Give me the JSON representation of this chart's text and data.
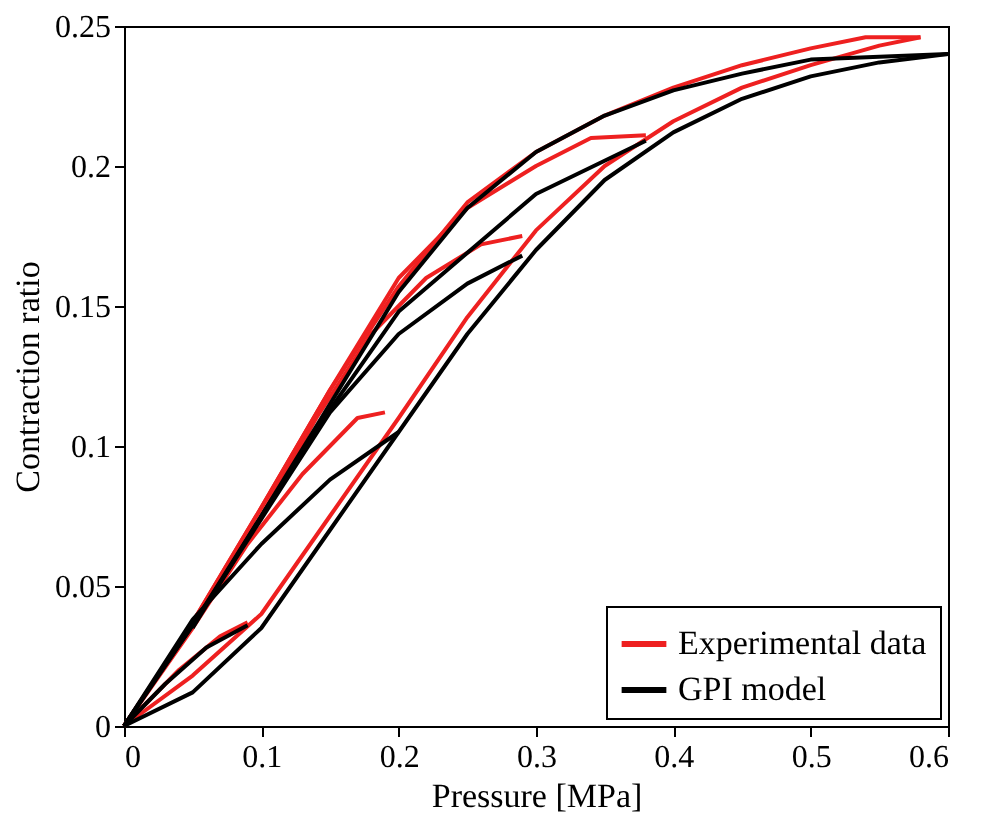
{
  "chart_data": {
    "type": "line",
    "xlabel": "Pressure [MPa]",
    "ylabel": "Contraction ratio",
    "xlim": [
      0,
      0.6
    ],
    "ylim": [
      0,
      0.25
    ],
    "xticks": [
      0,
      0.1,
      0.2,
      0.3,
      0.4,
      0.5,
      0.6
    ],
    "yticks": [
      0,
      0.05,
      0.1,
      0.15,
      0.2,
      0.25
    ],
    "legend": "bottom right",
    "grid": false,
    "line_style": "solid",
    "marker": "none",
    "series": [
      {
        "name": "Experimental data",
        "color": "#ee2020",
        "x": [
          0,
          0.05,
          0.1,
          0.15,
          0.2,
          0.25,
          0.3,
          0.35,
          0.4,
          0.45,
          0.5,
          0.55,
          0.58
        ],
        "values": [
          0,
          0.018,
          0.04,
          0.075,
          0.11,
          0.146,
          0.177,
          0.2,
          0.216,
          0.228,
          0.236,
          0.243,
          0.246
        ]
      },
      {
        "color": "#ee2020",
        "x": [
          0,
          0.04,
          0.07,
          0.09
        ],
        "values": [
          0,
          0.02,
          0.032,
          0.037
        ]
      },
      {
        "color": "#ee2020",
        "x": [
          0,
          0.05,
          0.09,
          0.13,
          0.17,
          0.19
        ],
        "values": [
          0,
          0.035,
          0.065,
          0.09,
          0.11,
          0.112
        ]
      },
      {
        "color": "#ee2020",
        "x": [
          0,
          0.05,
          0.1,
          0.14,
          0.18,
          0.22,
          0.26,
          0.29
        ],
        "values": [
          0,
          0.036,
          0.075,
          0.11,
          0.14,
          0.16,
          0.172,
          0.175
        ]
      },
      {
        "color": "#ee2020",
        "x": [
          0,
          0.05,
          0.1,
          0.15,
          0.2,
          0.25,
          0.3,
          0.34,
          0.38
        ],
        "values": [
          0,
          0.037,
          0.078,
          0.12,
          0.16,
          0.185,
          0.2,
          0.21,
          0.211
        ]
      },
      {
        "color": "#ee2020",
        "x": [
          0.05,
          0.1,
          0.15,
          0.2,
          0.25,
          0.3,
          0.35,
          0.4,
          0.45,
          0.5,
          0.54,
          0.58
        ],
        "values": [
          0.037,
          0.078,
          0.12,
          0.157,
          0.187,
          0.205,
          0.218,
          0.228,
          0.236,
          0.242,
          0.246,
          0.246
        ]
      },
      {
        "name": "GPI model",
        "color": "#000000",
        "x": [
          0,
          0.05,
          0.1,
          0.15,
          0.2,
          0.25,
          0.3,
          0.35,
          0.4,
          0.45,
          0.5,
          0.55,
          0.6
        ],
        "values": [
          0,
          0.012,
          0.035,
          0.07,
          0.105,
          0.14,
          0.17,
          0.195,
          0.212,
          0.224,
          0.232,
          0.237,
          0.24
        ]
      },
      {
        "color": "#000000",
        "x": [
          0,
          0.03,
          0.06,
          0.09
        ],
        "values": [
          0,
          0.015,
          0.028,
          0.036
        ]
      },
      {
        "color": "#000000",
        "x": [
          0,
          0.05,
          0.1,
          0.15,
          0.2
        ],
        "values": [
          0,
          0.038,
          0.065,
          0.088,
          0.105
        ]
      },
      {
        "color": "#000000",
        "x": [
          0,
          0.05,
          0.1,
          0.15,
          0.2,
          0.25,
          0.29
        ],
        "values": [
          0,
          0.036,
          0.074,
          0.112,
          0.14,
          0.158,
          0.168
        ]
      },
      {
        "color": "#000000",
        "x": [
          0,
          0.05,
          0.1,
          0.15,
          0.2,
          0.3,
          0.38
        ],
        "values": [
          0,
          0.036,
          0.075,
          0.113,
          0.148,
          0.19,
          0.209
        ]
      },
      {
        "color": "#000000",
        "x": [
          0.05,
          0.1,
          0.15,
          0.2,
          0.25,
          0.3,
          0.35,
          0.4,
          0.45,
          0.5,
          0.6
        ],
        "values": [
          0.035,
          0.075,
          0.115,
          0.155,
          0.185,
          0.205,
          0.218,
          0.227,
          0.233,
          0.238,
          0.24
        ]
      }
    ]
  }
}
